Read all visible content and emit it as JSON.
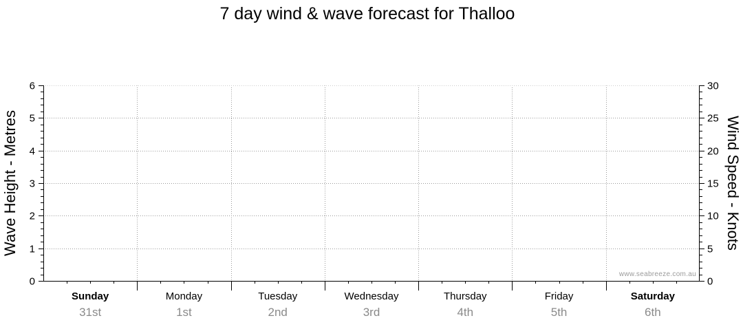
{
  "chart_data": {
    "type": "line",
    "title": "7 day wind & wave forecast for Thalloo",
    "y_left": {
      "label": "Wave Height - Metres",
      "range": [
        0,
        6
      ],
      "ticks": [
        "0",
        "1",
        "2",
        "3",
        "4",
        "5",
        "6"
      ]
    },
    "y_right": {
      "label": "Wind Speed - Knots",
      "range": [
        0,
        30
      ],
      "ticks": [
        "0",
        "5",
        "10",
        "15",
        "20",
        "25",
        "30"
      ]
    },
    "x_days": [
      {
        "day": "Sunday",
        "date": "31st",
        "bold": true
      },
      {
        "day": "Monday",
        "date": "1st",
        "bold": false
      },
      {
        "day": "Tuesday",
        "date": "2nd",
        "bold": false
      },
      {
        "day": "Wednesday",
        "date": "3rd",
        "bold": false
      },
      {
        "day": "Thursday",
        "date": "4th",
        "bold": false
      },
      {
        "day": "Friday",
        "date": "5th",
        "bold": false
      },
      {
        "day": "Saturday",
        "date": "6th",
        "bold": true
      }
    ],
    "series": [],
    "grid": true,
    "watermark": "www.seabreeze.com.au"
  }
}
